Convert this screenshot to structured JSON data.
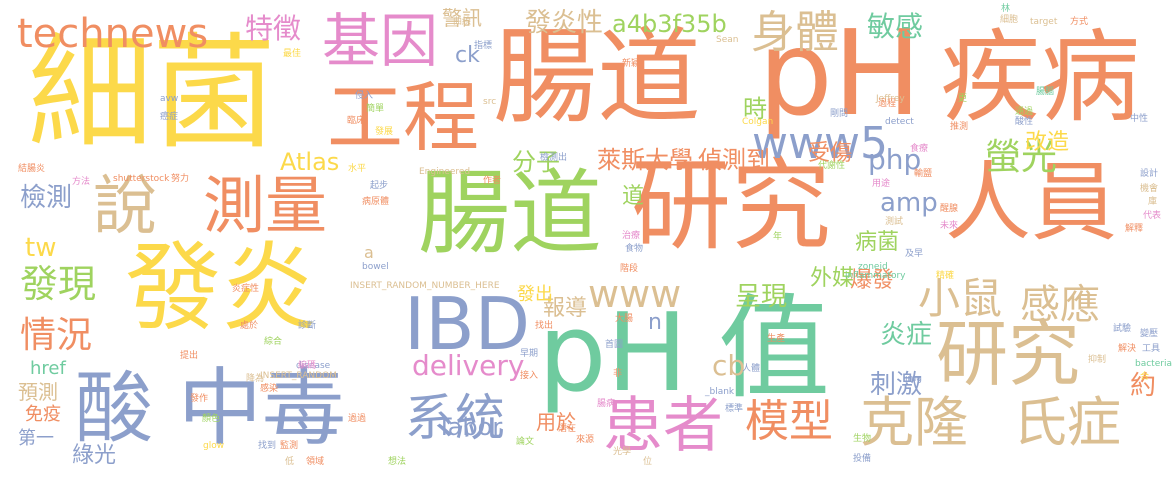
{
  "palette": {
    "orange": "#f08e62",
    "green": "#6fcb9f",
    "yellow": "#fcd94a",
    "beige": "#dbbf92",
    "lime": "#9fd35f",
    "pink": "#e58bcb",
    "blue": "#8c9fcb"
  },
  "words": [
    {
      "text": "腸道",
      "color": "#f08e62"
    },
    {
      "text": "pH",
      "color": "#f08e62"
    },
    {
      "text": "疾病",
      "color": "#f08e62"
    },
    {
      "text": "細菌",
      "color": "#fcd94a"
    },
    {
      "text": "基因",
      "color": "#e58bcb"
    },
    {
      "text": "工程",
      "color": "#f08e62"
    },
    {
      "text": "technews",
      "color": "#f08e62"
    },
    {
      "text": "特徵",
      "color": "#e58bcb"
    },
    {
      "text": "警訊",
      "color": "#dbbf92"
    },
    {
      "text": "發炎性",
      "color": "#dbbf92"
    },
    {
      "text": "a4b3f35b",
      "color": "#9fd35f"
    },
    {
      "text": "身體",
      "color": "#dbbf92"
    },
    {
      "text": "敏感",
      "color": "#6fcb9f"
    },
    {
      "text": "研究",
      "color": "#f08e62"
    },
    {
      "text": "人員",
      "color": "#f08e62"
    },
    {
      "text": "www5",
      "color": "#8c9fcb"
    },
    {
      "text": "腸道",
      "color": "#9fd35f"
    },
    {
      "text": "說",
      "color": "#dbbf92"
    },
    {
      "text": "測量",
      "color": "#f08e62"
    },
    {
      "text": "發炎",
      "color": "#fcd94a"
    },
    {
      "text": "IBD",
      "color": "#8c9fcb"
    },
    {
      "text": "pH",
      "color": "#6fcb9f"
    },
    {
      "text": "值",
      "color": "#6fcb9f"
    },
    {
      "text": "酸",
      "color": "#8c9fcb"
    },
    {
      "text": "中毒",
      "color": "#8c9fcb"
    },
    {
      "text": "系統",
      "color": "#8c9fcb"
    },
    {
      "text": "患者",
      "color": "#e58bcb"
    },
    {
      "text": "模型",
      "color": "#f08e62"
    },
    {
      "text": "小鼠",
      "color": "#dbbf92"
    },
    {
      "text": "感應",
      "color": "#dbbf92"
    },
    {
      "text": "研究",
      "color": "#dbbf92"
    },
    {
      "text": "克隆",
      "color": "#dbbf92"
    },
    {
      "text": "氏症",
      "color": "#dbbf92"
    },
    {
      "text": "螢光",
      "color": "#9fd35f"
    },
    {
      "text": "php",
      "color": "#8c9fcb"
    },
    {
      "text": "amp",
      "color": "#8c9fcb"
    },
    {
      "text": "萊斯大學",
      "color": "#f08e62"
    },
    {
      "text": "偵測到",
      "color": "#f08e62"
    },
    {
      "text": "分子",
      "color": "#9fd35f"
    },
    {
      "text": "受傷",
      "color": "#f08e62"
    },
    {
      "text": "改造",
      "color": "#fcd94a"
    },
    {
      "text": "時",
      "color": "#9fd35f"
    },
    {
      "text": "發現",
      "color": "#9fd35f"
    },
    {
      "text": "情況",
      "color": "#f08e62"
    },
    {
      "text": "檢測",
      "color": "#8c9fcb"
    },
    {
      "text": "tw",
      "color": "#fcd94a"
    },
    {
      "text": "Atlas",
      "color": "#fcd94a"
    },
    {
      "text": "ck",
      "color": "#8c9fcb"
    },
    {
      "text": "www",
      "color": "#dbbf92"
    },
    {
      "text": "呈現",
      "color": "#9fd35f"
    },
    {
      "text": "外媒",
      "color": "#9fd35f"
    },
    {
      "text": "爆發",
      "color": "#f08e62"
    },
    {
      "text": "病菌",
      "color": "#9fd35f"
    },
    {
      "text": "炎症",
      "color": "#6fcb9f"
    },
    {
      "text": "刺激",
      "color": "#8c9fcb"
    },
    {
      "text": "約",
      "color": "#f08e62"
    },
    {
      "text": "delivery",
      "color": "#e58bcb"
    },
    {
      "text": "cb",
      "color": "#dbbf92"
    },
    {
      "text": "Tabor",
      "color": "#8c9fcb"
    },
    {
      "text": "用於",
      "color": "#f08e62"
    },
    {
      "text": "報導",
      "color": "#dbbf92"
    },
    {
      "text": "發出",
      "color": "#fcd94a"
    },
    {
      "text": "道",
      "color": "#9fd35f"
    },
    {
      "text": "n",
      "color": "#8c9fcb"
    },
    {
      "text": "href",
      "color": "#6fcb9f"
    },
    {
      "text": "預測",
      "color": "#dbbf92"
    },
    {
      "text": "免疫",
      "color": "#f08e62"
    },
    {
      "text": "第一",
      "color": "#8c9fcb"
    },
    {
      "text": "綠光",
      "color": "#8c9fcb"
    },
    {
      "text": "a",
      "color": "#dbbf92"
    },
    {
      "text": "src",
      "color": "#dbbf92"
    },
    {
      "text": "Jeffrey",
      "color": "#dbbf92"
    },
    {
      "text": "target",
      "color": "#dbbf92"
    },
    {
      "text": "Colgan",
      "color": "#fcd94a"
    },
    {
      "text": "Sean",
      "color": "#dbbf92"
    },
    {
      "text": "Engineered",
      "color": "#dbbf92"
    },
    {
      "text": "shutterstock",
      "color": "#f08e62"
    },
    {
      "text": "bowel",
      "color": "#8c9fcb"
    },
    {
      "text": "inflammatory",
      "color": "#6fcb9f"
    },
    {
      "text": "zoneid",
      "color": "#6fcb9f"
    },
    {
      "text": "INSERT_RANDOM_NUMBER_HERE",
      "color": "#dbbf92"
    },
    {
      "text": "INSERT_RANDOM",
      "color": "#dbbf92"
    },
    {
      "text": "disease",
      "color": "#8c9fcb"
    },
    {
      "text": "detect",
      "color": "#8c9fcb"
    },
    {
      "text": "bacteria",
      "color": "#6fcb9f"
    },
    {
      "text": "glow",
      "color": "#fcd94a"
    },
    {
      "text": "img",
      "color": "#8c9fcb"
    },
    {
      "text": "_blank",
      "color": "#8c9fcb"
    },
    {
      "text": "avw",
      "color": "#8c9fcb"
    },
    {
      "text": "方法",
      "color": "#e58bcb"
    },
    {
      "text": "結腸炎",
      "color": "#f08e62"
    },
    {
      "text": "癌症",
      "color": "#8c9fcb"
    },
    {
      "text": "最佳",
      "color": "#fcd94a"
    },
    {
      "text": "曲線",
      "color": "#dbbf92"
    },
    {
      "text": "指標",
      "color": "#8c9fcb"
    },
    {
      "text": "新穎",
      "color": "#f08e62"
    },
    {
      "text": "努力",
      "color": "#f08e62"
    },
    {
      "text": "水平",
      "color": "#fcd94a"
    },
    {
      "text": "起步",
      "color": "#8c9fcb"
    },
    {
      "text": "作者",
      "color": "#f08e62"
    },
    {
      "text": "檢測出",
      "color": "#8c9fcb"
    },
    {
      "text": "臨床",
      "color": "#f08e62"
    },
    {
      "text": "簡單",
      "color": "#9fd35f"
    },
    {
      "text": "發展",
      "color": "#fcd94a"
    },
    {
      "text": "侵入",
      "color": "#8c9fcb"
    },
    {
      "text": "病原體",
      "color": "#f08e62"
    },
    {
      "text": "階段",
      "color": "#f08e62"
    },
    {
      "text": "治療",
      "color": "#e58bcb"
    },
    {
      "text": "食物",
      "color": "#8c9fcb"
    },
    {
      "text": "年",
      "color": "#9fd35f"
    },
    {
      "text": "代謝性",
      "color": "#9fd35f"
    },
    {
      "text": "輸鹽",
      "color": "#f08e62"
    },
    {
      "text": "推測",
      "color": "#f08e62"
    },
    {
      "text": "酸性",
      "color": "#8c9fcb"
    },
    {
      "text": "中性",
      "color": "#8c9fcb"
    },
    {
      "text": "通過",
      "color": "#9fd35f"
    },
    {
      "text": "腸腦",
      "color": "#6fcb9f"
    },
    {
      "text": "細胞",
      "color": "#dbbf92"
    },
    {
      "text": "林",
      "color": "#6fcb9f"
    },
    {
      "text": "方式",
      "color": "#f08e62"
    },
    {
      "text": "剛問",
      "color": "#8c9fcb"
    },
    {
      "text": "更",
      "color": "#9fd35f"
    },
    {
      "text": "食療",
      "color": "#e58bcb"
    },
    {
      "text": "用途",
      "color": "#e58bcb"
    },
    {
      "text": "設計",
      "color": "#8c9fcb"
    },
    {
      "text": "機會",
      "color": "#dbbf92"
    },
    {
      "text": "庫",
      "color": "#dbbf92"
    },
    {
      "text": "代表",
      "color": "#e58bcb"
    },
    {
      "text": "醒腺",
      "color": "#f08e62"
    },
    {
      "text": "解釋",
      "color": "#f08e62"
    },
    {
      "text": "未來",
      "color": "#e58bcb"
    },
    {
      "text": "測試",
      "color": "#dbbf92"
    },
    {
      "text": "及早",
      "color": "#8c9fcb"
    },
    {
      "text": "精確",
      "color": "#fcd94a"
    },
    {
      "text": "試驗",
      "color": "#8c9fcb"
    },
    {
      "text": "變壓",
      "color": "#8c9fcb"
    },
    {
      "text": "抑制",
      "color": "#dbbf92"
    },
    {
      "text": "解決",
      "color": "#f08e62"
    },
    {
      "text": "工具",
      "color": "#8c9fcb"
    },
    {
      "text": "生產",
      "color": "#f08e62"
    },
    {
      "text": "人體",
      "color": "#8c9fcb"
    },
    {
      "text": "生物",
      "color": "#9fd35f"
    },
    {
      "text": "投備",
      "color": "#8c9fcb"
    },
    {
      "text": "診斷",
      "color": "#8c9fcb"
    },
    {
      "text": "綜合",
      "color": "#9fd35f"
    },
    {
      "text": "處於",
      "color": "#f08e62"
    },
    {
      "text": "炎症性",
      "color": "#f08e62"
    },
    {
      "text": "編碼",
      "color": "#e58bcb"
    },
    {
      "text": "提出",
      "color": "#f08e62"
    },
    {
      "text": "降為",
      "color": "#dbbf92"
    },
    {
      "text": "感染",
      "color": "#f08e62"
    },
    {
      "text": "發作",
      "color": "#f08e62"
    },
    {
      "text": "顏色",
      "color": "#9fd35f"
    },
    {
      "text": "找到",
      "color": "#8c9fcb"
    },
    {
      "text": "監測",
      "color": "#f08e62"
    },
    {
      "text": "低",
      "color": "#dbbf92"
    },
    {
      "text": "領域",
      "color": "#f08e62"
    },
    {
      "text": "想法",
      "color": "#9fd35f"
    },
    {
      "text": "論文",
      "color": "#9fd35f"
    },
    {
      "text": "來源",
      "color": "#f08e62"
    },
    {
      "text": "光學",
      "color": "#dbbf92"
    },
    {
      "text": "位",
      "color": "#dbbf92"
    },
    {
      "text": "腸病",
      "color": "#e58bcb"
    },
    {
      "text": "非",
      "color": "#f08e62"
    },
    {
      "text": "首圖",
      "color": "#8c9fcb"
    },
    {
      "text": "大腸",
      "color": "#f08e62"
    },
    {
      "text": "找出",
      "color": "#f08e62"
    },
    {
      "text": "早期",
      "color": "#8c9fcb"
    },
    {
      "text": "接入",
      "color": "#f08e62"
    },
    {
      "text": "標準",
      "color": "#8c9fcb"
    },
    {
      "text": "潛在",
      "color": "#f08e62"
    },
    {
      "text": "過過",
      "color": "#f08e62"
    },
    {
      "text": "合",
      "color": "#fcd94a"
    },
    {
      "text": "過程",
      "color": "#f08e62"
    }
  ]
}
